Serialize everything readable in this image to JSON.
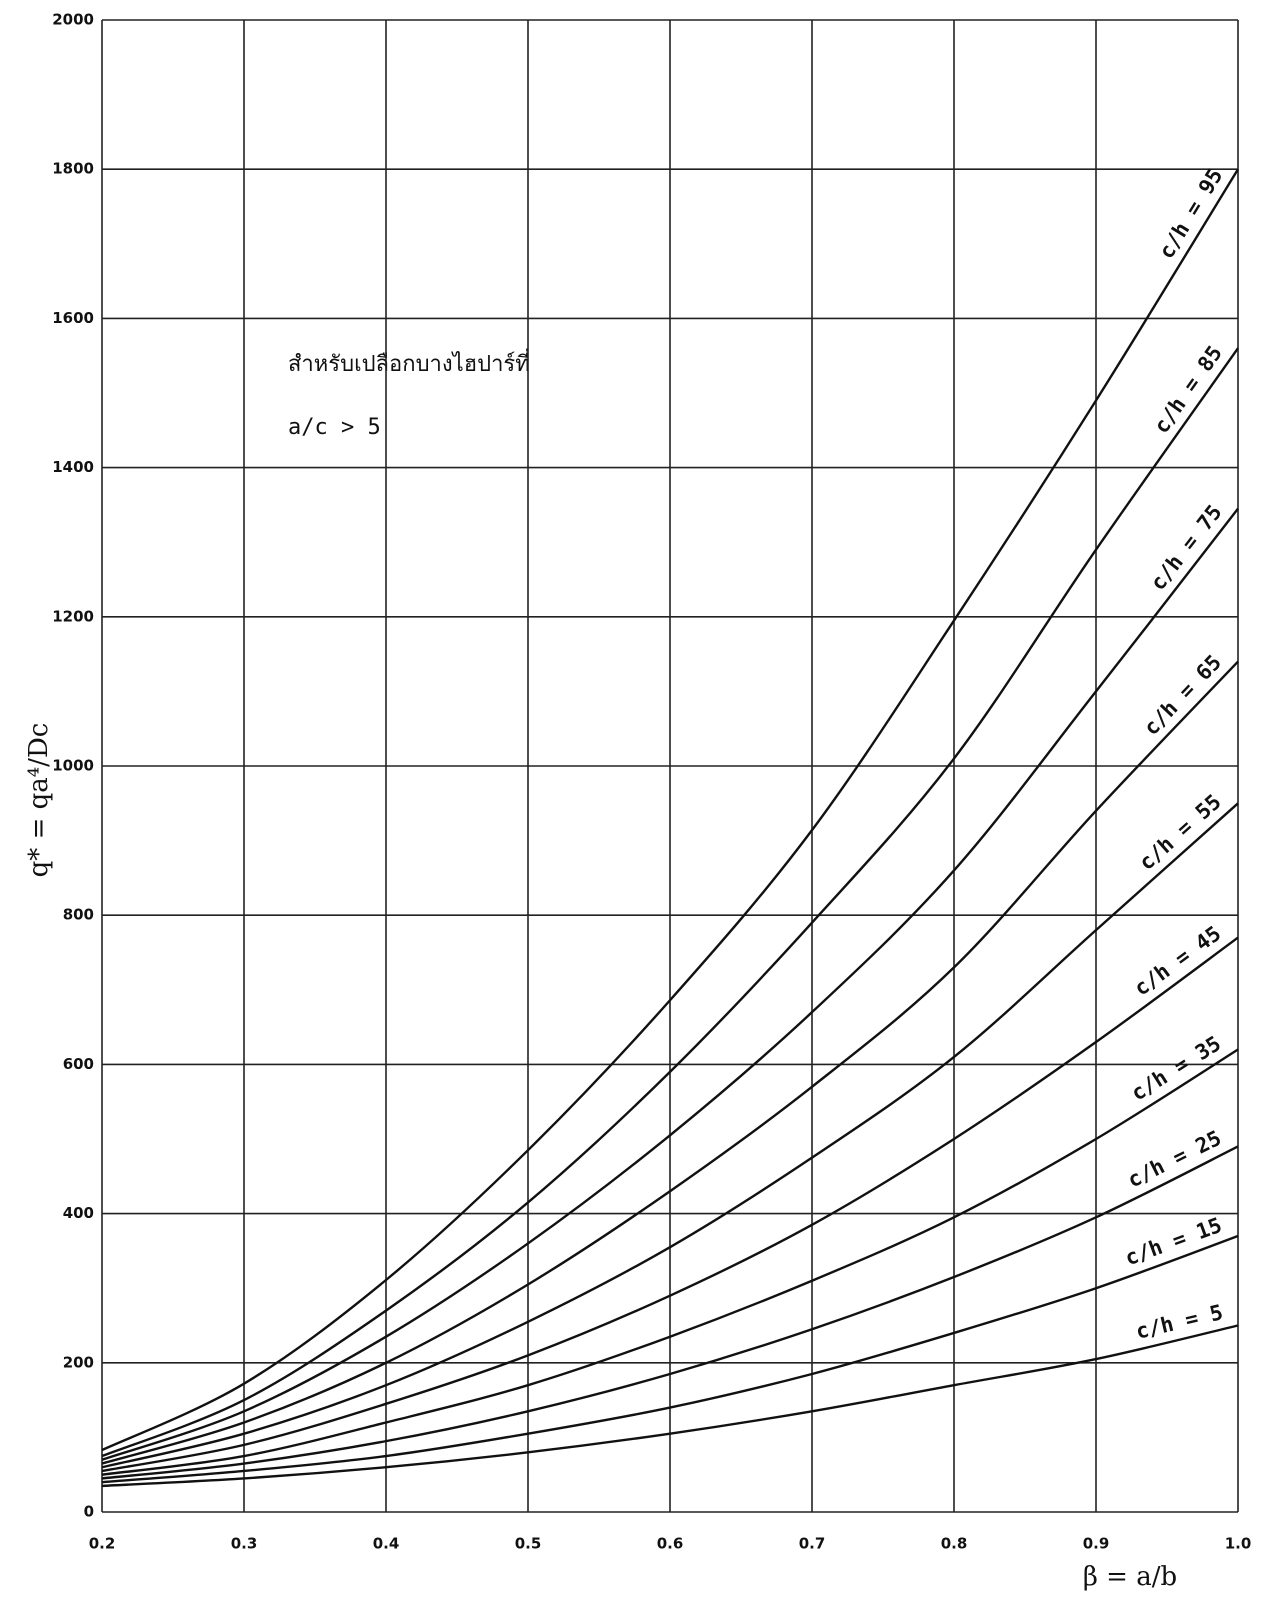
{
  "chart_data": {
    "type": "line",
    "x_label": "β = a/b",
    "y_label": "q* = qa⁴/Dc",
    "annotations": [
      "สำหรับเปลือกบางไฮปาร์ที่",
      "a/c > 5"
    ],
    "x": [
      0.2,
      0.3,
      0.4,
      0.5,
      0.6,
      0.7,
      0.8,
      0.9,
      1.0
    ],
    "xlim": [
      0.2,
      1.0
    ],
    "ylim": [
      0,
      2000
    ],
    "xticks": [
      0.2,
      0.3,
      0.4,
      0.5,
      0.6,
      0.7,
      0.8,
      0.9,
      {
        "value": 1,
        "label": "1.0"
      }
    ],
    "yticks": [
      0,
      200,
      400,
      600,
      800,
      1000,
      1200,
      1400,
      1600,
      1800,
      2000
    ],
    "grid": true,
    "series": [
      {
        "name": "c/h = 95",
        "color": "#111111",
        "values": [
          83,
          172,
          311,
          485,
          686,
          914,
          1195,
          1490,
          1800
        ]
      },
      {
        "name": "c/h = 85",
        "color": "#111111",
        "values": [
          75,
          150,
          270,
          415,
          590,
          790,
          1010,
          1290,
          1560
        ]
      },
      {
        "name": "c/h = 75",
        "color": "#111111",
        "values": [
          70,
          135,
          235,
          360,
          505,
          670,
          860,
          1100,
          1345
        ]
      },
      {
        "name": "c/h = 65",
        "color": "#111111",
        "values": [
          65,
          120,
          200,
          305,
          430,
          570,
          730,
          940,
          1140
        ]
      },
      {
        "name": "c/h = 55",
        "color": "#111111",
        "values": [
          60,
          105,
          170,
          255,
          355,
          475,
          610,
          780,
          950
        ]
      },
      {
        "name": "c/h = 45",
        "color": "#111111",
        "values": [
          55,
          90,
          145,
          210,
          290,
          385,
          500,
          630,
          770
        ]
      },
      {
        "name": "c/h = 35",
        "color": "#111111",
        "values": [
          50,
          75,
          120,
          170,
          235,
          310,
          395,
          500,
          620
        ]
      },
      {
        "name": "c/h = 25",
        "color": "#111111",
        "values": [
          45,
          65,
          95,
          135,
          185,
          245,
          315,
          395,
          490
        ]
      },
      {
        "name": "c/h = 15",
        "color": "#111111",
        "values": [
          40,
          55,
          75,
          105,
          140,
          185,
          240,
          300,
          370
        ]
      },
      {
        "name": "c/h = 5",
        "color": "#111111",
        "values": [
          35,
          45,
          60,
          80,
          105,
          135,
          170,
          205,
          250
        ]
      }
    ]
  }
}
